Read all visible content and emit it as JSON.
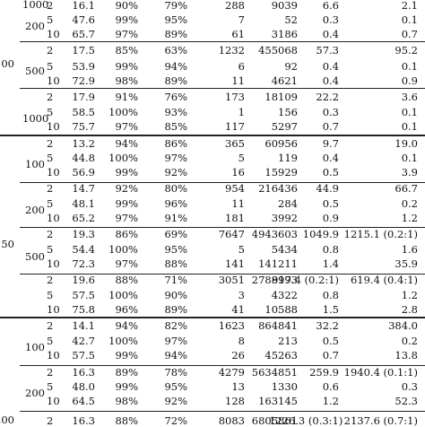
{
  "table": {
    "groups": [
      {
        "n": "100",
        "subgroups": [
          {
            "size": "200",
            "rows": [
              [
                "2",
                "16.1",
                "90%",
                "79%",
                "288",
                "9039",
                "6.6",
                "2.1"
              ],
              [
                "5",
                "47.6",
                "99%",
                "95%",
                "7",
                "52",
                "0.3",
                "0.1"
              ],
              [
                "10",
                "65.7",
                "97%",
                "89%",
                "61",
                "3186",
                "0.4",
                "0.7"
              ]
            ]
          },
          {
            "size": "500",
            "rows": [
              [
                "2",
                "17.5",
                "85%",
                "63%",
                "1232",
                "455068",
                "57.3",
                "95.2"
              ],
              [
                "5",
                "53.9",
                "99%",
                "94%",
                "6",
                "92",
                "0.4",
                "0.1"
              ],
              [
                "10",
                "72.9",
                "98%",
                "89%",
                "11",
                "4621",
                "0.4",
                "0.9"
              ]
            ]
          },
          {
            "size": "1000",
            "rows": [
              [
                "2",
                "17.9",
                "91%",
                "76%",
                "173",
                "18109",
                "22.2",
                "3.6"
              ],
              [
                "5",
                "58.5",
                "100%",
                "93%",
                "1",
                "156",
                "0.3",
                "0.1"
              ],
              [
                "10",
                "75.7",
                "97%",
                "85%",
                "117",
                "5297",
                "0.7",
                "0.1"
              ]
            ]
          }
        ]
      },
      {
        "n": "150",
        "subgroups": [
          {
            "size": "100",
            "rows": [
              [
                "2",
                "13.2",
                "94%",
                "86%",
                "365",
                "60956",
                "9.7",
                "19.0"
              ],
              [
                "5",
                "44.8",
                "100%",
                "97%",
                "5",
                "119",
                "0.4",
                "0.1"
              ],
              [
                "10",
                "56.9",
                "99%",
                "92%",
                "16",
                "15929",
                "0.5",
                "3.9"
              ]
            ]
          },
          {
            "size": "200",
            "rows": [
              [
                "2",
                "14.7",
                "92%",
                "80%",
                "954",
                "216436",
                "44.9",
                "66.7"
              ],
              [
                "5",
                "48.1",
                "99%",
                "96%",
                "11",
                "284",
                "0.5",
                "0.2"
              ],
              [
                "10",
                "65.2",
                "97%",
                "91%",
                "181",
                "3992",
                "0.9",
                "1.2"
              ]
            ]
          },
          {
            "size": "500",
            "rows": [
              [
                "2",
                "19.3",
                "86%",
                "69%",
                "7647",
                "4943603",
                "1049.9",
                "1215.1  (0.2:1)"
              ],
              [
                "5",
                "54.4",
                "100%",
                "95%",
                "5",
                "5434",
                "0.8",
                "1.6"
              ],
              [
                "10",
                "72.3",
                "97%",
                "88%",
                "141",
                "141211",
                "1.4",
                "35.9"
              ]
            ]
          },
          {
            "size": "1000",
            "rows": [
              [
                "2",
                "19.6",
                "88%",
                "71%",
                "3051",
                "2788993",
                "917.4  (0.2:1)",
                "619.4  (0.4:1)"
              ],
              [
                "5",
                "57.5",
                "100%",
                "90%",
                "3",
                "4322",
                "0.8",
                "1.2"
              ],
              [
                "10",
                "75.8",
                "96%",
                "89%",
                "41",
                "10588",
                "1.5",
                "2.8"
              ]
            ]
          }
        ]
      },
      {
        "n": "200",
        "subgroups": [
          {
            "size": "100",
            "rows": [
              [
                "2",
                "14.1",
                "94%",
                "82%",
                "1623",
                "864841",
                "32.2",
                "384.0"
              ],
              [
                "5",
                "42.7",
                "100%",
                "97%",
                "8",
                "213",
                "0.5",
                "0.2"
              ],
              [
                "10",
                "57.5",
                "99%",
                "94%",
                "26",
                "45263",
                "0.7",
                "13.8"
              ]
            ]
          },
          {
            "size": "200",
            "rows": [
              [
                "2",
                "16.3",
                "89%",
                "78%",
                "4279",
                "5634851",
                "259.9",
                "1940.4  (0.1:1)"
              ],
              [
                "5",
                "48.0",
                "99%",
                "95%",
                "13",
                "1330",
                "0.6",
                "0.3"
              ],
              [
                "10",
                "64.5",
                "98%",
                "92%",
                "128",
                "163145",
                "1.2",
                "52.3"
              ]
            ]
          },
          {
            "size": "",
            "rows": [
              [
                "2",
                "16.3",
                "88%",
                "72%",
                "8083",
                "6805861",
                "1226.3  (0.3:1)",
                "2137.6  (0.7:1)"
              ]
            ]
          }
        ]
      }
    ]
  }
}
